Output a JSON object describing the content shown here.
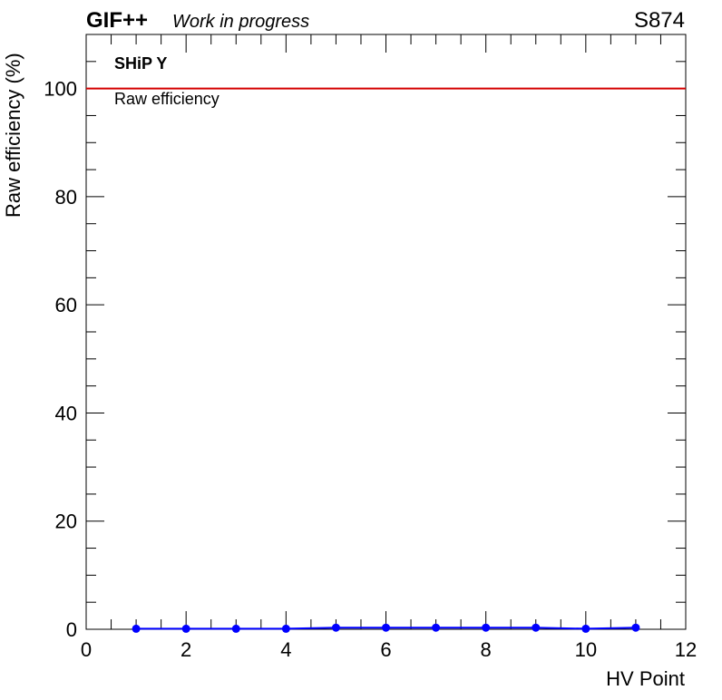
{
  "header": {
    "experiment": "GIF++",
    "status": "Work in progress",
    "run_id": "S874"
  },
  "annotations": {
    "detector": "SHiP Y",
    "measure": "Raw efficiency"
  },
  "colors": {
    "series": "#0000ff",
    "reference_line": "#d40000",
    "axis": "#000000"
  },
  "chart_data": {
    "type": "line",
    "title": "",
    "xlabel": "HV Point",
    "ylabel": "Raw efficiency (%)",
    "xlim": [
      0,
      12
    ],
    "ylim": [
      0,
      110
    ],
    "x_ticks": [
      0,
      2,
      4,
      6,
      8,
      10,
      12
    ],
    "y_ticks": [
      0,
      20,
      40,
      60,
      80,
      100
    ],
    "grid": false,
    "reference_line": {
      "y": 100
    },
    "series": [
      {
        "x": [
          1,
          2,
          3,
          4,
          5,
          6,
          7,
          8,
          9,
          10,
          11
        ],
        "y": [
          0.1,
          0.1,
          0.1,
          0.1,
          0.3,
          0.3,
          0.3,
          0.3,
          0.3,
          0.1,
          0.3
        ]
      }
    ]
  }
}
